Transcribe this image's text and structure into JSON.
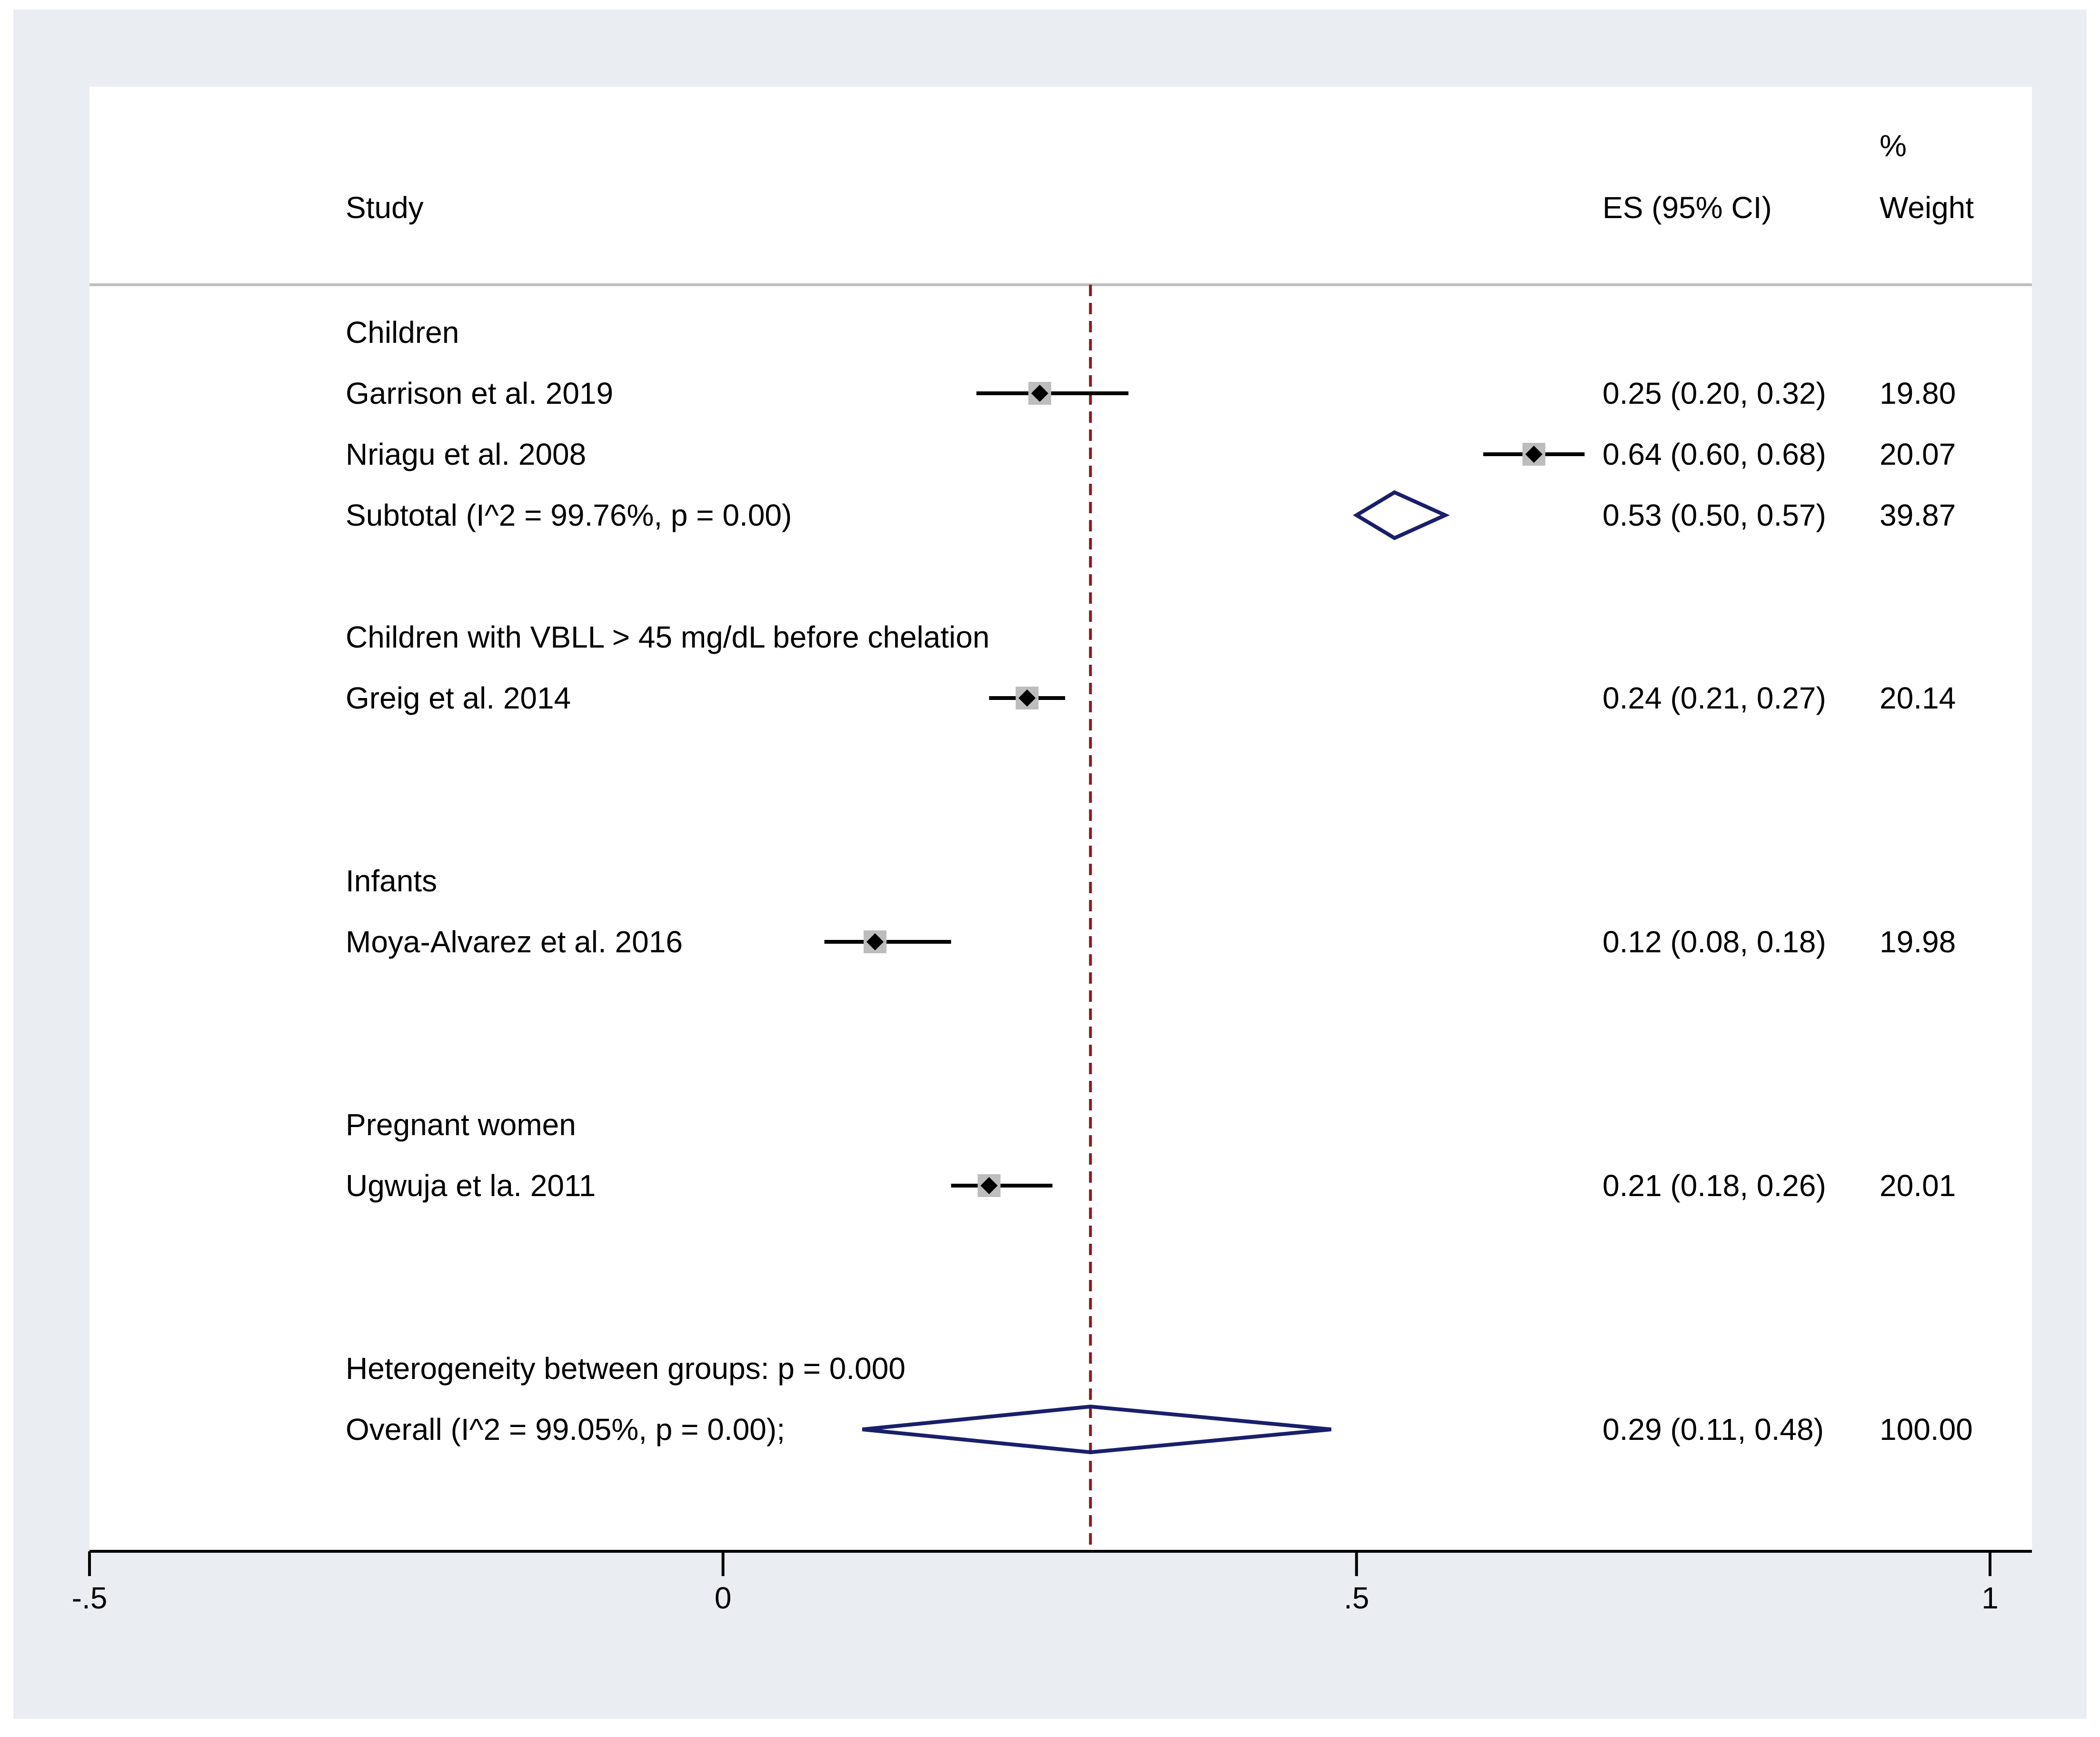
{
  "chart_data": {
    "type": "forest",
    "headers": {
      "study": "Study",
      "es": "ES (95% CI)",
      "weight_line1": "%",
      "weight_line2": "Weight"
    },
    "xticks": [
      {
        "value": -0.5,
        "label": "-.5"
      },
      {
        "value": 0,
        "label": "0"
      },
      {
        "value": 0.5,
        "label": ".5"
      },
      {
        "value": 1,
        "label": "1"
      }
    ],
    "xlim": [
      -0.5,
      1
    ],
    "pooled_line": 0.29,
    "rows": [
      {
        "kind": "group",
        "label": "Children"
      },
      {
        "kind": "study",
        "label": "Garrison et al. 2019",
        "es": 0.25,
        "lo": 0.2,
        "hi": 0.32,
        "ci_text": "0.25 (0.20, 0.32)",
        "weight": "19.80"
      },
      {
        "kind": "study",
        "label": "Nriagu et al. 2008",
        "es": 0.64,
        "lo": 0.6,
        "hi": 0.68,
        "ci_text": "0.64 (0.60, 0.68)",
        "weight": "20.07"
      },
      {
        "kind": "subtotal",
        "label": "Subtotal  (I^2 = 99.76%, p = 0.00)",
        "es": 0.53,
        "lo": 0.5,
        "hi": 0.57,
        "ci_text": "0.53 (0.50, 0.57)",
        "weight": "39.87"
      },
      {
        "kind": "group",
        "label": "Children with VBLL > 45 mg/dL before chelation"
      },
      {
        "kind": "study",
        "label": "Greig et al. 2014",
        "es": 0.24,
        "lo": 0.21,
        "hi": 0.27,
        "ci_text": "0.24 (0.21, 0.27)",
        "weight": "20.14"
      },
      {
        "kind": "group",
        "label": "Infants"
      },
      {
        "kind": "study",
        "label": "Moya-Alvarez et al. 2016",
        "es": 0.12,
        "lo": 0.08,
        "hi": 0.18,
        "ci_text": "0.12 (0.08, 0.18)",
        "weight": "19.98"
      },
      {
        "kind": "group",
        "label": "Pregnant women"
      },
      {
        "kind": "study",
        "label": "Ugwuja et la. 2011",
        "es": 0.21,
        "lo": 0.18,
        "hi": 0.26,
        "ci_text": "0.21 (0.18, 0.26)",
        "weight": "20.01"
      },
      {
        "kind": "note",
        "label": "Heterogeneity between groups: p = 0.000"
      },
      {
        "kind": "overall",
        "label": "Overall  (I^2 = 99.05%, p = 0.00);",
        "es": 0.29,
        "lo": 0.11,
        "hi": 0.48,
        "ci_text": "0.29 (0.11, 0.48)",
        "weight": "100.00"
      }
    ],
    "colors": {
      "frame": "#eaeef3",
      "plot": "#ffffff",
      "ci_line": "#000000",
      "weight_box": "#bdbdbd",
      "diamond": "#1a1f6b",
      "pooled_line": "#8b1a1a",
      "header_rule": "#bfbfbf"
    }
  }
}
